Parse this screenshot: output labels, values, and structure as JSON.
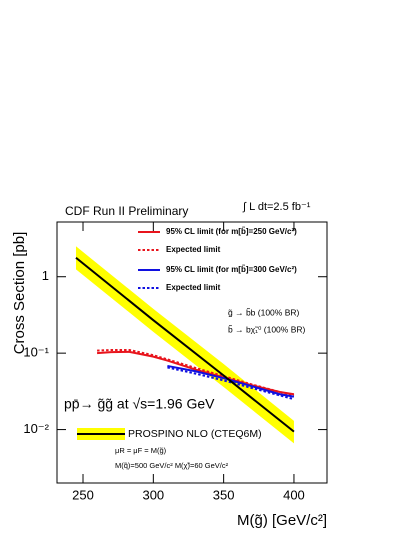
{
  "chart_data": {
    "type": "line",
    "title": "CDF Run II Preliminary",
    "luminosity": "∫ L dt=2.5 fb⁻¹",
    "x_label": "M(g̃) [GeV/c²]",
    "y_label": "Cross Section [pb]",
    "xlim": [
      231.5,
      423.5
    ],
    "xticks": [
      250,
      300,
      350,
      400
    ],
    "ylim": [
      0.002,
      5.2
    ],
    "log_y": true,
    "yticks": [
      {
        "value": 0.01,
        "label": "10⁻²"
      },
      {
        "value": 0.1,
        "label": "10⁻¹"
      },
      1
    ],
    "series": [
      {
        "name": "95% CL limit (for m[b̃]=250 GeV/c²)",
        "color": "#e8141c",
        "style": "solid",
        "x": [
          260,
          270,
          283,
          300,
          310,
          330,
          350,
          370,
          390,
          400
        ],
        "values": [
          0.1,
          0.103,
          0.104,
          0.09,
          0.08,
          0.061,
          0.048,
          0.038,
          0.031,
          0.029
        ]
      },
      {
        "name": "Expected limit",
        "color": "#e8141c",
        "style": "dotted",
        "x": [
          260,
          270,
          283,
          300,
          310,
          330,
          350,
          370,
          390,
          400
        ],
        "values": [
          0.108,
          0.11,
          0.11,
          0.094,
          0.083,
          0.064,
          0.05,
          0.039,
          0.031,
          0.028
        ]
      },
      {
        "name": "95% CL limit (for m[b̃]=300 GeV/c²)",
        "color": "#1010e0",
        "style": "solid",
        "x": [
          310,
          330,
          350,
          370,
          390,
          400
        ],
        "values": [
          0.068,
          0.058,
          0.047,
          0.037,
          0.029,
          0.027
        ]
      },
      {
        "name": "Expected limit",
        "color": "#1010e0",
        "style": "dotted",
        "x": [
          310,
          330,
          350,
          370,
          390,
          400
        ],
        "values": [
          0.065,
          0.054,
          0.044,
          0.035,
          0.028,
          0.025
        ]
      },
      {
        "name": "PROSPINO NLO (CTEQ6M)",
        "color": "#000000",
        "style": "solid",
        "band_color": "#ffff00",
        "x": [
          245,
          300,
          350,
          400
        ],
        "values": [
          1.77,
          0.27,
          0.051,
          0.0094
        ],
        "band_upper": [
          2.5,
          0.38,
          0.072,
          0.013
        ],
        "band_lower": [
          1.25,
          0.19,
          0.036,
          0.0066
        ]
      }
    ],
    "annotations": [
      "g̃ → b̃b (100% BR)",
      "b̃ → bχ̃₁⁰ (100% BR)",
      "pp̄→ g̃g̃ at √s=1.96 GeV",
      "μR = μF = M(g̃)",
      "M(q̃)=500 GeV/c²   M(χ̃)=60 GeV/c²"
    ]
  }
}
